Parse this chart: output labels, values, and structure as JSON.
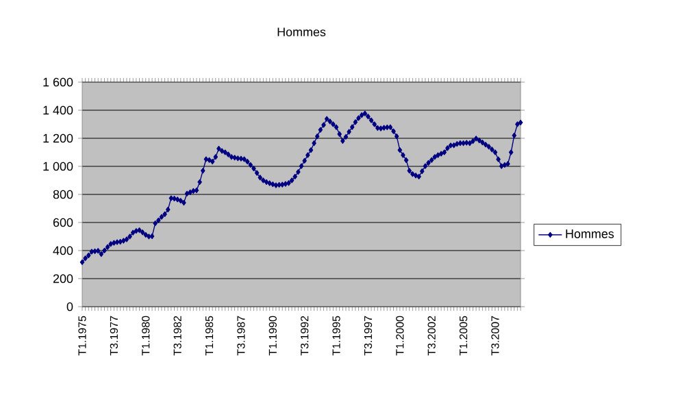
{
  "chart_data": {
    "type": "line",
    "title": "Hommes",
    "categories": [
      "T1.1975",
      null,
      null,
      null,
      null,
      null,
      null,
      null,
      null,
      null,
      "T3.1977",
      null,
      null,
      null,
      null,
      null,
      null,
      null,
      null,
      null,
      "T1.1980",
      null,
      null,
      null,
      null,
      null,
      null,
      null,
      null,
      null,
      "T3.1982",
      null,
      null,
      null,
      null,
      null,
      null,
      null,
      null,
      null,
      "T1.1985",
      null,
      null,
      null,
      null,
      null,
      null,
      null,
      null,
      null,
      "T3.1987",
      null,
      null,
      null,
      null,
      null,
      null,
      null,
      null,
      null,
      "T1.1990",
      null,
      null,
      null,
      null,
      null,
      null,
      null,
      null,
      null,
      "T3.1992",
      null,
      null,
      null,
      null,
      null,
      null,
      null,
      null,
      null,
      "T1.1995",
      null,
      null,
      null,
      null,
      null,
      null,
      null,
      null,
      null,
      "T3.1997",
      null,
      null,
      null,
      null,
      null,
      null,
      null,
      null,
      null,
      "T1.2000",
      null,
      null,
      null,
      null,
      null,
      null,
      null,
      null,
      null,
      "T3.2002",
      null,
      null,
      null,
      null,
      null,
      null,
      null,
      null,
      null,
      "T1.2005",
      null,
      null,
      null,
      null,
      null,
      null,
      null,
      null,
      null,
      "T3.2007",
      null,
      null,
      null,
      null,
      null,
      null,
      null,
      null
    ],
    "series": [
      {
        "name": "Hommes",
        "color": "#000080",
        "values": [
          317,
          345,
          365,
          392,
          395,
          398,
          375,
          400,
          425,
          447,
          455,
          460,
          463,
          470,
          480,
          500,
          528,
          540,
          545,
          530,
          512,
          500,
          502,
          594,
          615,
          640,
          659,
          692,
          773,
          770,
          764,
          755,
          741,
          806,
          815,
          825,
          829,
          888,
          969,
          1051,
          1045,
          1034,
          1067,
          1126,
          1110,
          1100,
          1085,
          1067,
          1062,
          1057,
          1055,
          1051,
          1034,
          1010,
          985,
          953,
          920,
          900,
          888,
          880,
          872,
          865,
          868,
          870,
          875,
          881,
          900,
          927,
          960,
          1002,
          1040,
          1080,
          1116,
          1165,
          1214,
          1260,
          1295,
          1338,
          1320,
          1300,
          1279,
          1230,
          1181,
          1210,
          1246,
          1280,
          1315,
          1344,
          1365,
          1377,
          1355,
          1328,
          1300,
          1273,
          1270,
          1275,
          1278,
          1279,
          1250,
          1214,
          1116,
          1080,
          1044,
          969,
          945,
          935,
          927,
          965,
          1002,
          1025,
          1045,
          1067,
          1080,
          1090,
          1100,
          1130,
          1149,
          1150,
          1160,
          1165,
          1165,
          1168,
          1165,
          1180,
          1198,
          1185,
          1170,
          1155,
          1140,
          1120,
          1100,
          1050,
          1002,
          1010,
          1018,
          1100,
          1220,
          1300,
          1312
        ]
      }
    ],
    "ylim": [
      0,
      1600
    ],
    "yticks": [
      0,
      200,
      400,
      600,
      800,
      {
        "value": 1000,
        "label": "1 000"
      },
      {
        "value": 1200,
        "label": "1 200"
      },
      {
        "value": 1400,
        "label": "1 400"
      },
      {
        "value": 1600,
        "label": "1 600"
      }
    ],
    "grid": "y",
    "legend": "right",
    "marker": "diamond",
    "line_style": "solid"
  }
}
